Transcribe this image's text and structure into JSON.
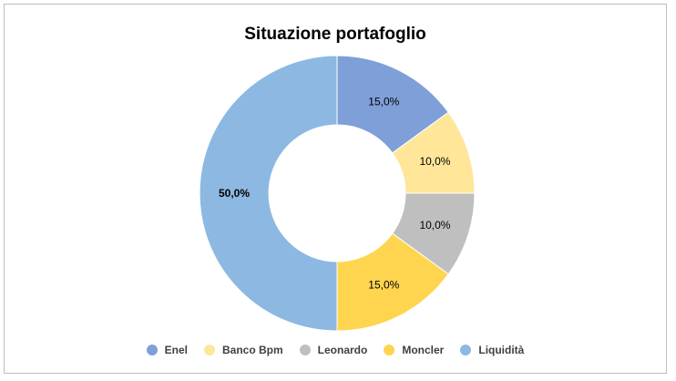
{
  "chart_data": {
    "type": "pie",
    "variant": "donut",
    "title": "Situazione portafoglio",
    "categories": [
      "Enel",
      "Banco Bpm",
      "Leonardo",
      "Moncler",
      "Liquidità"
    ],
    "values": [
      15.0,
      10.0,
      10.0,
      15.0,
      50.0
    ],
    "data_labels": [
      "15,0%",
      "10,0%",
      "10,0%",
      "15,0%",
      "50,0%"
    ],
    "colors": [
      "#7f9fd9",
      "#ffe699",
      "#bfbfbf",
      "#ffd54f",
      "#8db8e2"
    ],
    "legend_position": "bottom"
  }
}
